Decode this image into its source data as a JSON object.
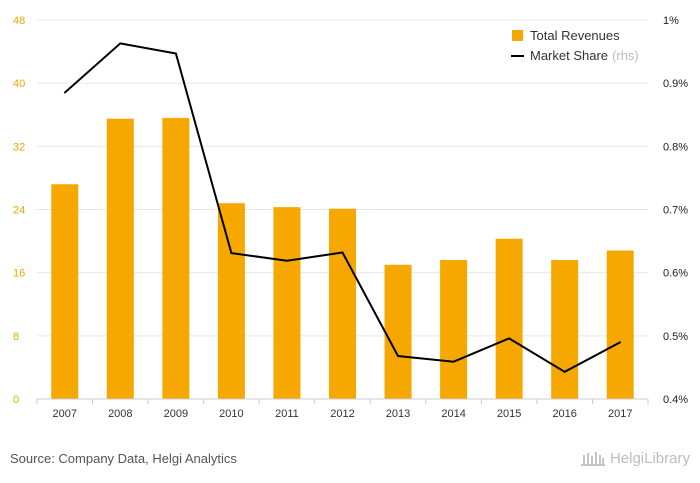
{
  "chart_data": {
    "type": "bar+line",
    "categories": [
      "2007",
      "2008",
      "2009",
      "2010",
      "2011",
      "2012",
      "2013",
      "2014",
      "2015",
      "2016",
      "2017"
    ],
    "series": [
      {
        "name": "Total Revenues",
        "chart": "bar",
        "axis": "left",
        "color": "#f7a800",
        "values": [
          27.2,
          35.5,
          35.6,
          24.8,
          24.3,
          24.1,
          17.0,
          17.6,
          20.3,
          17.6,
          18.8
        ]
      },
      {
        "name": "Market Share",
        "axis_note": "(rhs)",
        "chart": "line",
        "axis": "right",
        "color": "#000000",
        "values": [
          0.885,
          0.963,
          0.947,
          0.631,
          0.619,
          0.632,
          0.468,
          0.459,
          0.496,
          0.443,
          0.49
        ]
      }
    ],
    "ylim_left": [
      0,
      48
    ],
    "yticks_left": [
      "0",
      "8",
      "16",
      "24",
      "32",
      "40",
      "48"
    ],
    "ylim_right": [
      0.4,
      1.0
    ],
    "yticks_right": [
      "0.4%",
      "0.5%",
      "0.6%",
      "0.7%",
      "0.8%",
      "0.9%",
      "1%"
    ],
    "grid": true,
    "legend_position": "top-right"
  },
  "footer": {
    "source": "Source: Company Data, Helgi Analytics",
    "logo_text": "HelgiLibrary"
  }
}
